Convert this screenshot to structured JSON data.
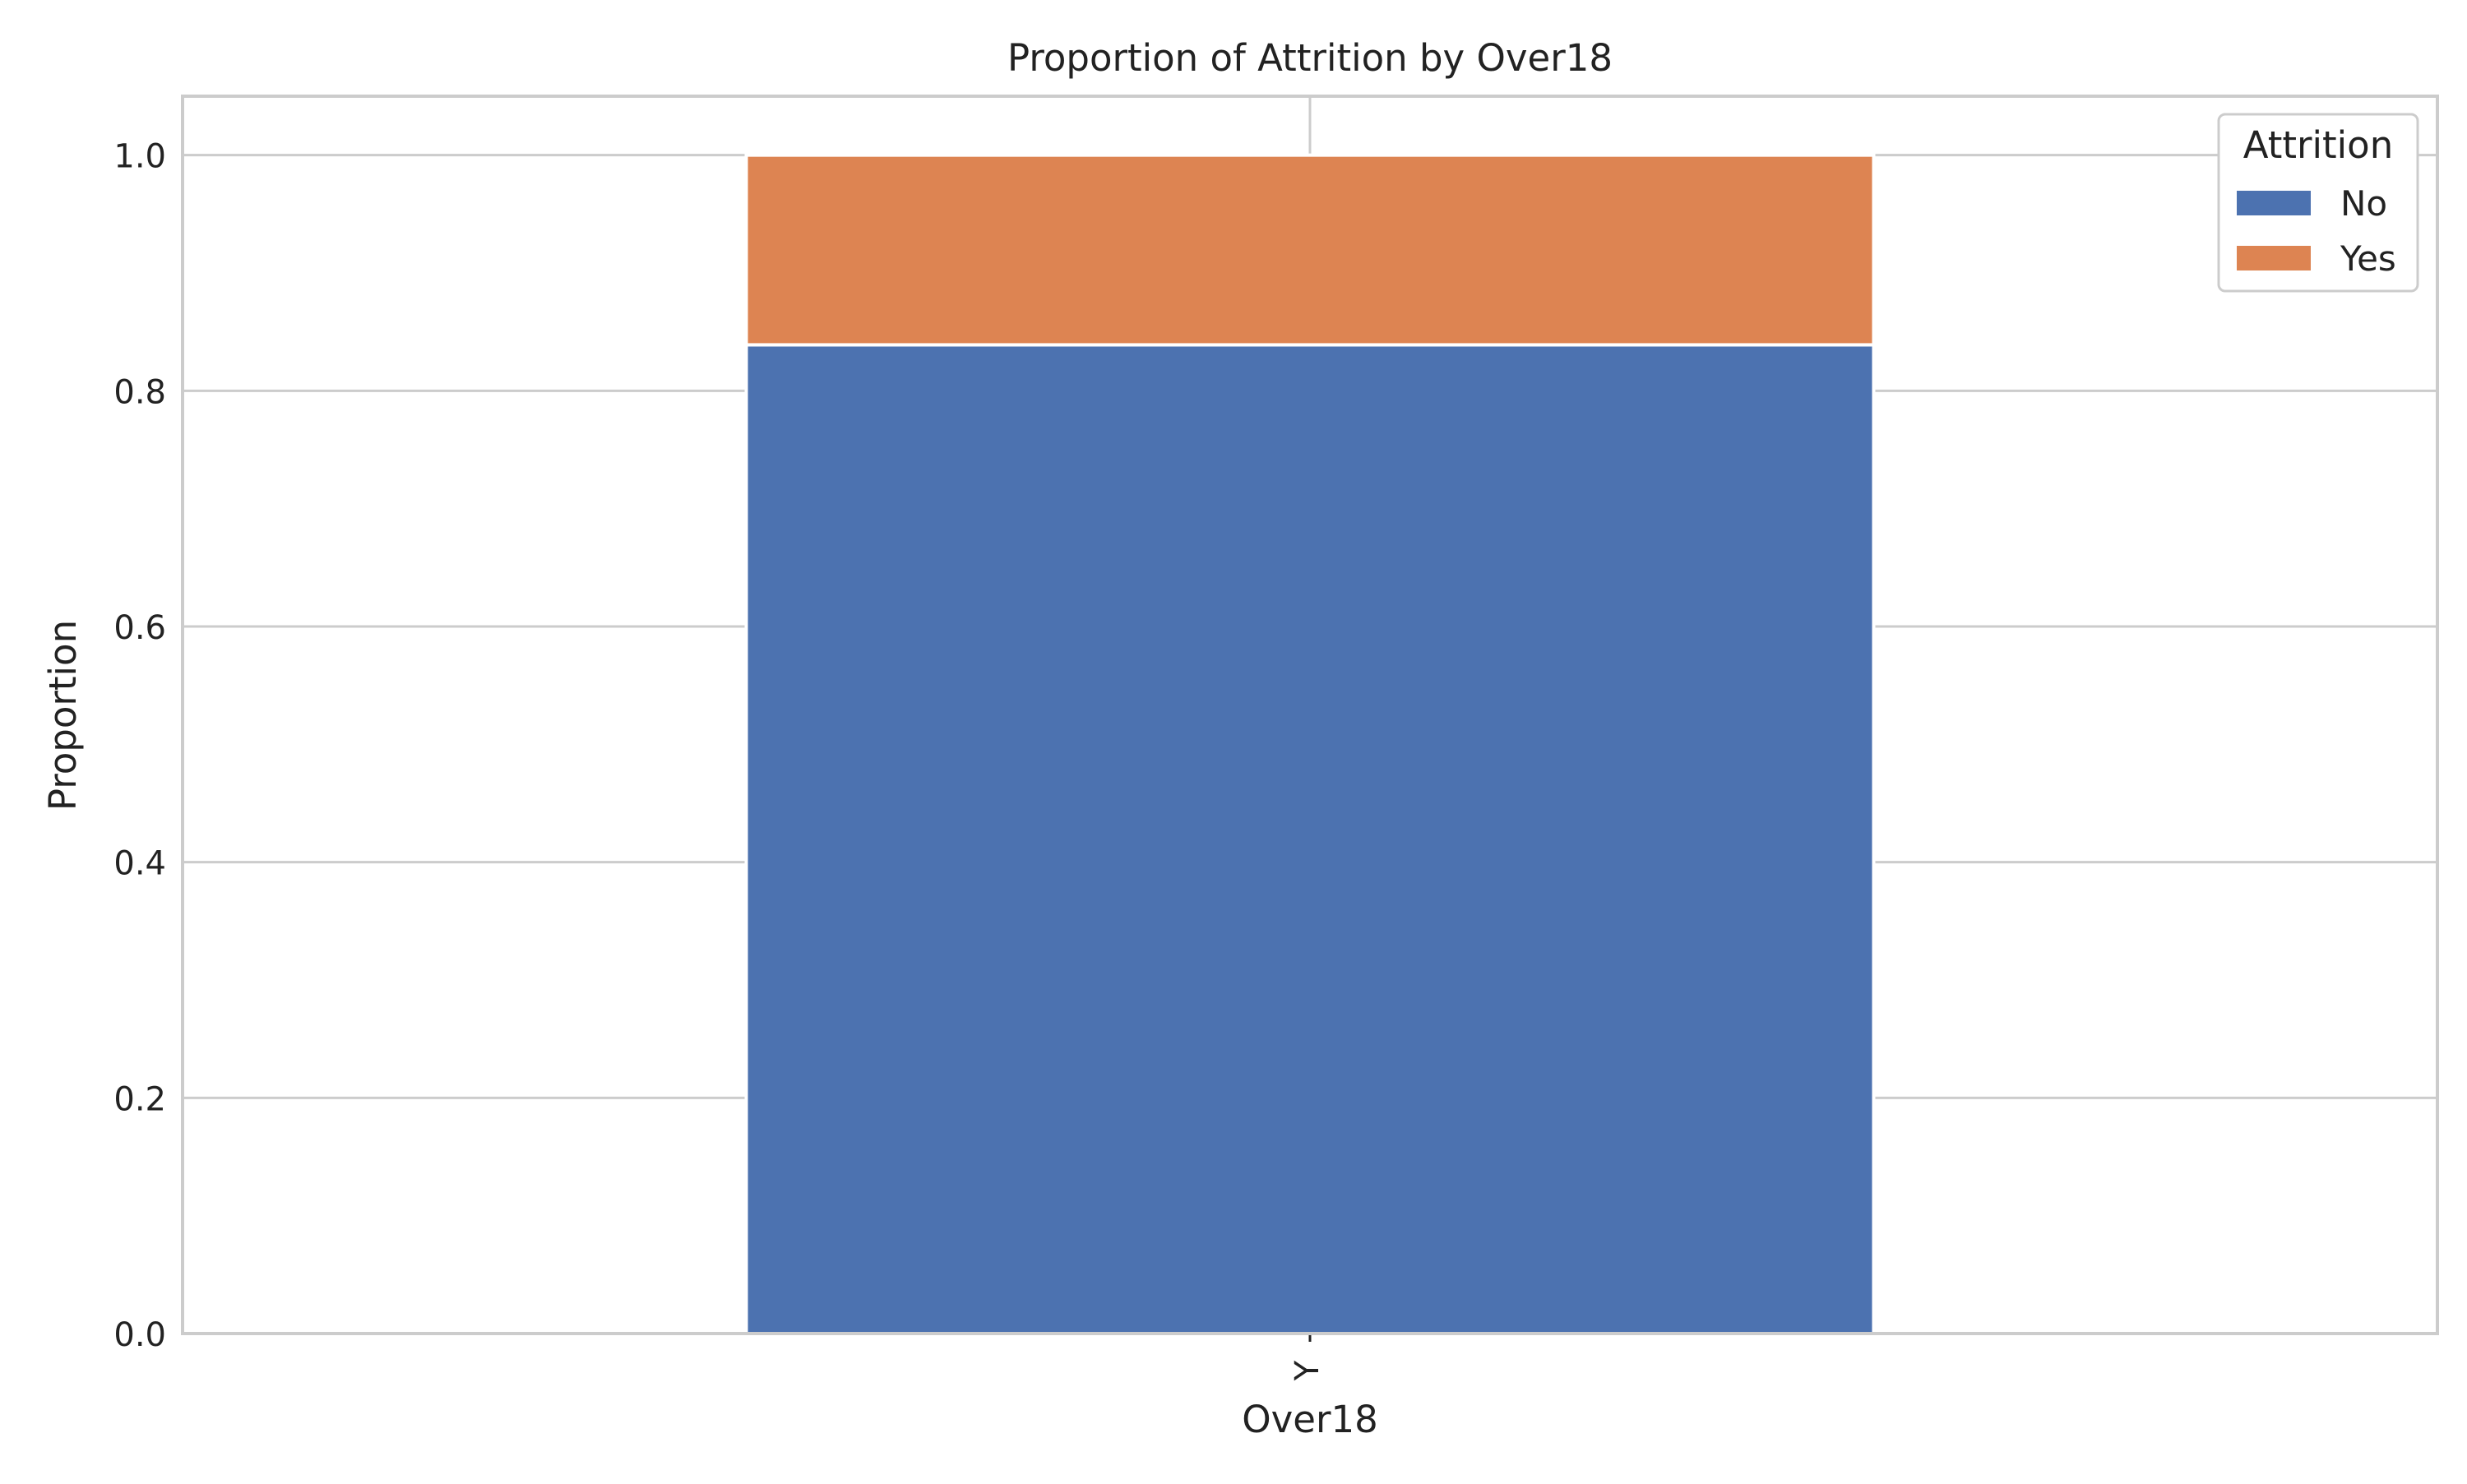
{
  "chart_data": {
    "type": "bar",
    "stacked": true,
    "title": "Proportion of Attrition by Over18",
    "xlabel": "Over18",
    "ylabel": "Proportion",
    "categories": [
      "Y"
    ],
    "series": [
      {
        "name": "No",
        "values": [
          0.839
        ],
        "color": "#4c72b0"
      },
      {
        "name": "Yes",
        "values": [
          0.161
        ],
        "color": "#dd8452"
      }
    ],
    "ylim": [
      0,
      1.05
    ],
    "yticks": [
      0.0,
      0.2,
      0.4,
      0.6,
      0.8,
      1.0
    ],
    "ytick_labels": [
      "0.0",
      "0.2",
      "0.4",
      "0.6",
      "0.8",
      "1.0"
    ],
    "grid": true,
    "legend": {
      "title": "Attrition",
      "position": "top-right"
    },
    "colors": {
      "grid": "#cccccc",
      "axis": "#cccccc",
      "text": "#222222",
      "background": "#ffffff"
    }
  }
}
